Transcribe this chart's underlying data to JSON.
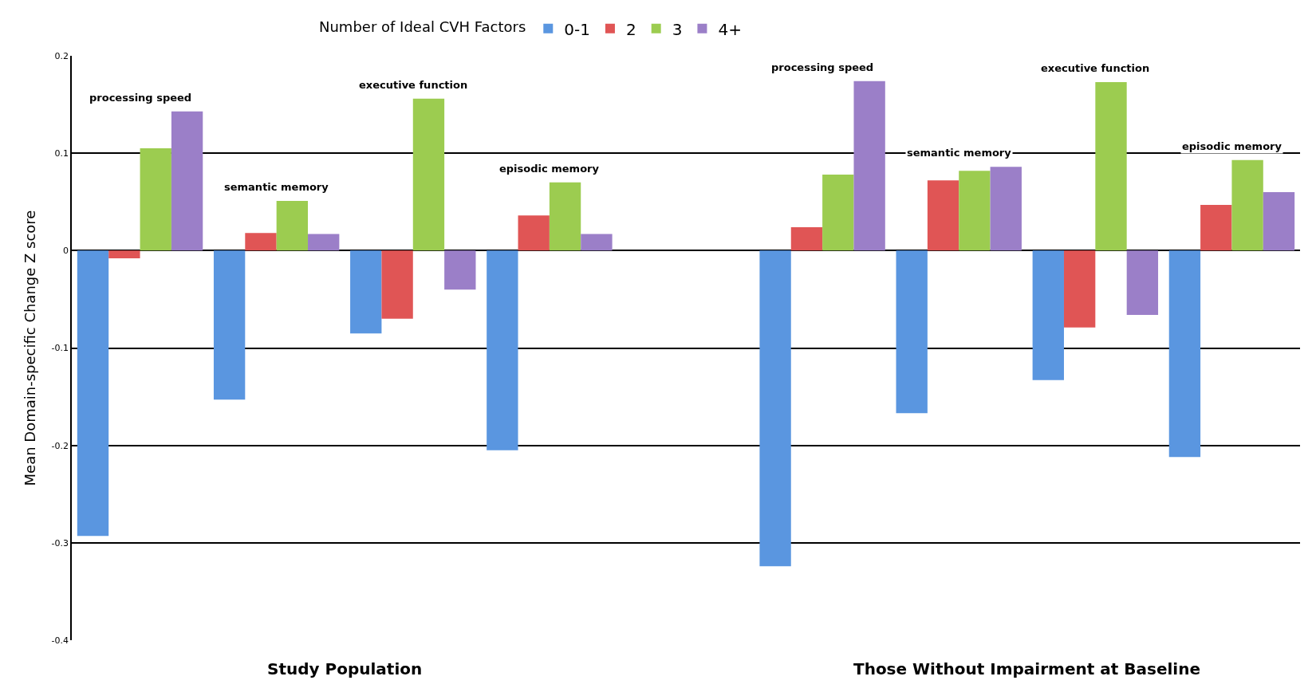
{
  "chart_data": {
    "type": "bar",
    "ylabel": "Mean Domain-specific Change Z score",
    "legend_title": "Number of Ideal CVH Factors",
    "categories": [
      "processing speed",
      "semantic memory",
      "executive function",
      "episodic memory",
      null,
      "processing speed",
      "semantic memory",
      "executive function",
      "episodic memory"
    ],
    "series": [
      {
        "name": "0-1",
        "color": "#5a96e0",
        "values": [
          -0.293,
          -0.153,
          -0.085,
          -0.205,
          null,
          -0.324,
          -0.167,
          -0.133,
          -0.212
        ]
      },
      {
        "name": "2",
        "color": "#e05555",
        "values": [
          -0.008,
          0.018,
          -0.07,
          0.036,
          null,
          0.024,
          0.072,
          -0.079,
          0.047
        ]
      },
      {
        "name": "3",
        "color": "#9ccc50",
        "values": [
          0.105,
          0.051,
          0.156,
          0.07,
          null,
          0.078,
          0.082,
          0.173,
          0.093
        ]
      },
      {
        "name": "4+",
        "color": "#9b7fc8",
        "values": [
          0.143,
          0.017,
          -0.04,
          0.017,
          null,
          0.174,
          0.086,
          -0.066,
          0.06
        ]
      }
    ],
    "annotations": [
      "Study Population",
      "Those Without Impairment at Baseline"
    ],
    "ylim": [
      -0.4,
      0.2
    ],
    "yticks": [
      -0.4,
      -0.3,
      -0.2,
      -0.1,
      0,
      0.1,
      0.2
    ],
    "grid": "y",
    "legend": "top",
    "tick_labels": "y"
  }
}
